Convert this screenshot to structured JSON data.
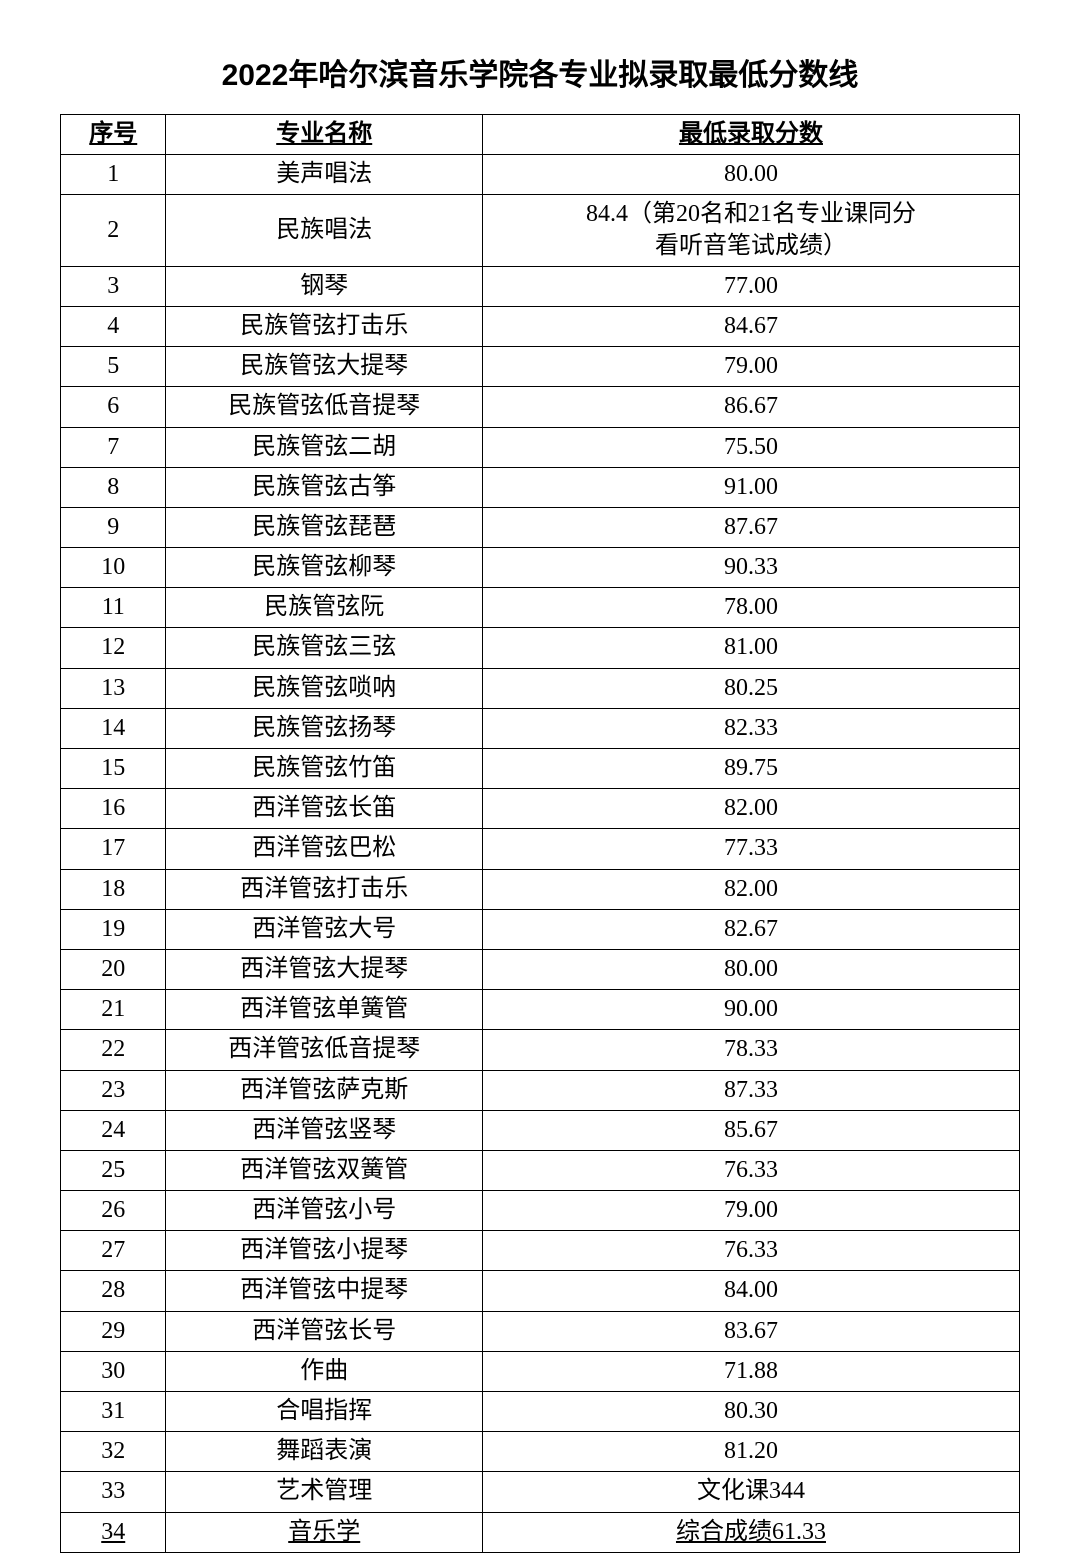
{
  "title": "2022年哈尔滨音乐学院各专业拟录取最低分数线",
  "table": {
    "columns": [
      "序号",
      "专业名称",
      "最低录取分数"
    ],
    "rows": [
      {
        "seq": "1",
        "major": "美声唱法",
        "score": "80.00"
      },
      {
        "seq": "2",
        "major": "民族唱法",
        "score": "84.4（第20名和21名专业课同分\n看听音笔试成绩）"
      },
      {
        "seq": "3",
        "major": "钢琴",
        "score": "77.00"
      },
      {
        "seq": "4",
        "major": "民族管弦打击乐",
        "score": "84.67"
      },
      {
        "seq": "5",
        "major": "民族管弦大提琴",
        "score": "79.00"
      },
      {
        "seq": "6",
        "major": "民族管弦低音提琴",
        "score": "86.67"
      },
      {
        "seq": "7",
        "major": "民族管弦二胡",
        "score": "75.50"
      },
      {
        "seq": "8",
        "major": "民族管弦古筝",
        "score": "91.00"
      },
      {
        "seq": "9",
        "major": "民族管弦琵琶",
        "score": "87.67"
      },
      {
        "seq": "10",
        "major": "民族管弦柳琴",
        "score": "90.33"
      },
      {
        "seq": "11",
        "major": "民族管弦阮",
        "score": "78.00"
      },
      {
        "seq": "12",
        "major": "民族管弦三弦",
        "score": "81.00"
      },
      {
        "seq": "13",
        "major": "民族管弦唢呐",
        "score": "80.25"
      },
      {
        "seq": "14",
        "major": "民族管弦扬琴",
        "score": "82.33"
      },
      {
        "seq": "15",
        "major": "民族管弦竹笛",
        "score": "89.75"
      },
      {
        "seq": "16",
        "major": "西洋管弦长笛",
        "score": "82.00"
      },
      {
        "seq": "17",
        "major": "西洋管弦巴松",
        "score": "77.33"
      },
      {
        "seq": "18",
        "major": "西洋管弦打击乐",
        "score": "82.00"
      },
      {
        "seq": "19",
        "major": "西洋管弦大号",
        "score": "82.67"
      },
      {
        "seq": "20",
        "major": "西洋管弦大提琴",
        "score": "80.00"
      },
      {
        "seq": "21",
        "major": "西洋管弦单簧管",
        "score": "90.00"
      },
      {
        "seq": "22",
        "major": "西洋管弦低音提琴",
        "score": "78.33"
      },
      {
        "seq": "23",
        "major": "西洋管弦萨克斯",
        "score": "87.33"
      },
      {
        "seq": "24",
        "major": "西洋管弦竖琴",
        "score": "85.67"
      },
      {
        "seq": "25",
        "major": "西洋管弦双簧管",
        "score": "76.33"
      },
      {
        "seq": "26",
        "major": "西洋管弦小号",
        "score": "79.00"
      },
      {
        "seq": "27",
        "major": "西洋管弦小提琴",
        "score": "76.33"
      },
      {
        "seq": "28",
        "major": "西洋管弦中提琴",
        "score": "84.00"
      },
      {
        "seq": "29",
        "major": "西洋管弦长号",
        "score": "83.67"
      },
      {
        "seq": "30",
        "major": "作曲",
        "score": "71.88"
      },
      {
        "seq": "31",
        "major": "合唱指挥",
        "score": "80.30"
      },
      {
        "seq": "32",
        "major": "舞蹈表演",
        "score": "81.20"
      },
      {
        "seq": "33",
        "major": "艺术管理",
        "score": "文化课344"
      },
      {
        "seq": "34",
        "major": "音乐学",
        "score": "综合成绩61.33"
      }
    ]
  },
  "styling": {
    "background_color": "#ffffff",
    "border_color": "#000000",
    "text_color": "#000000",
    "title_fontsize": 30,
    "cell_fontsize": 24,
    "col_widths": [
      "11%",
      "33%",
      "56%"
    ]
  }
}
